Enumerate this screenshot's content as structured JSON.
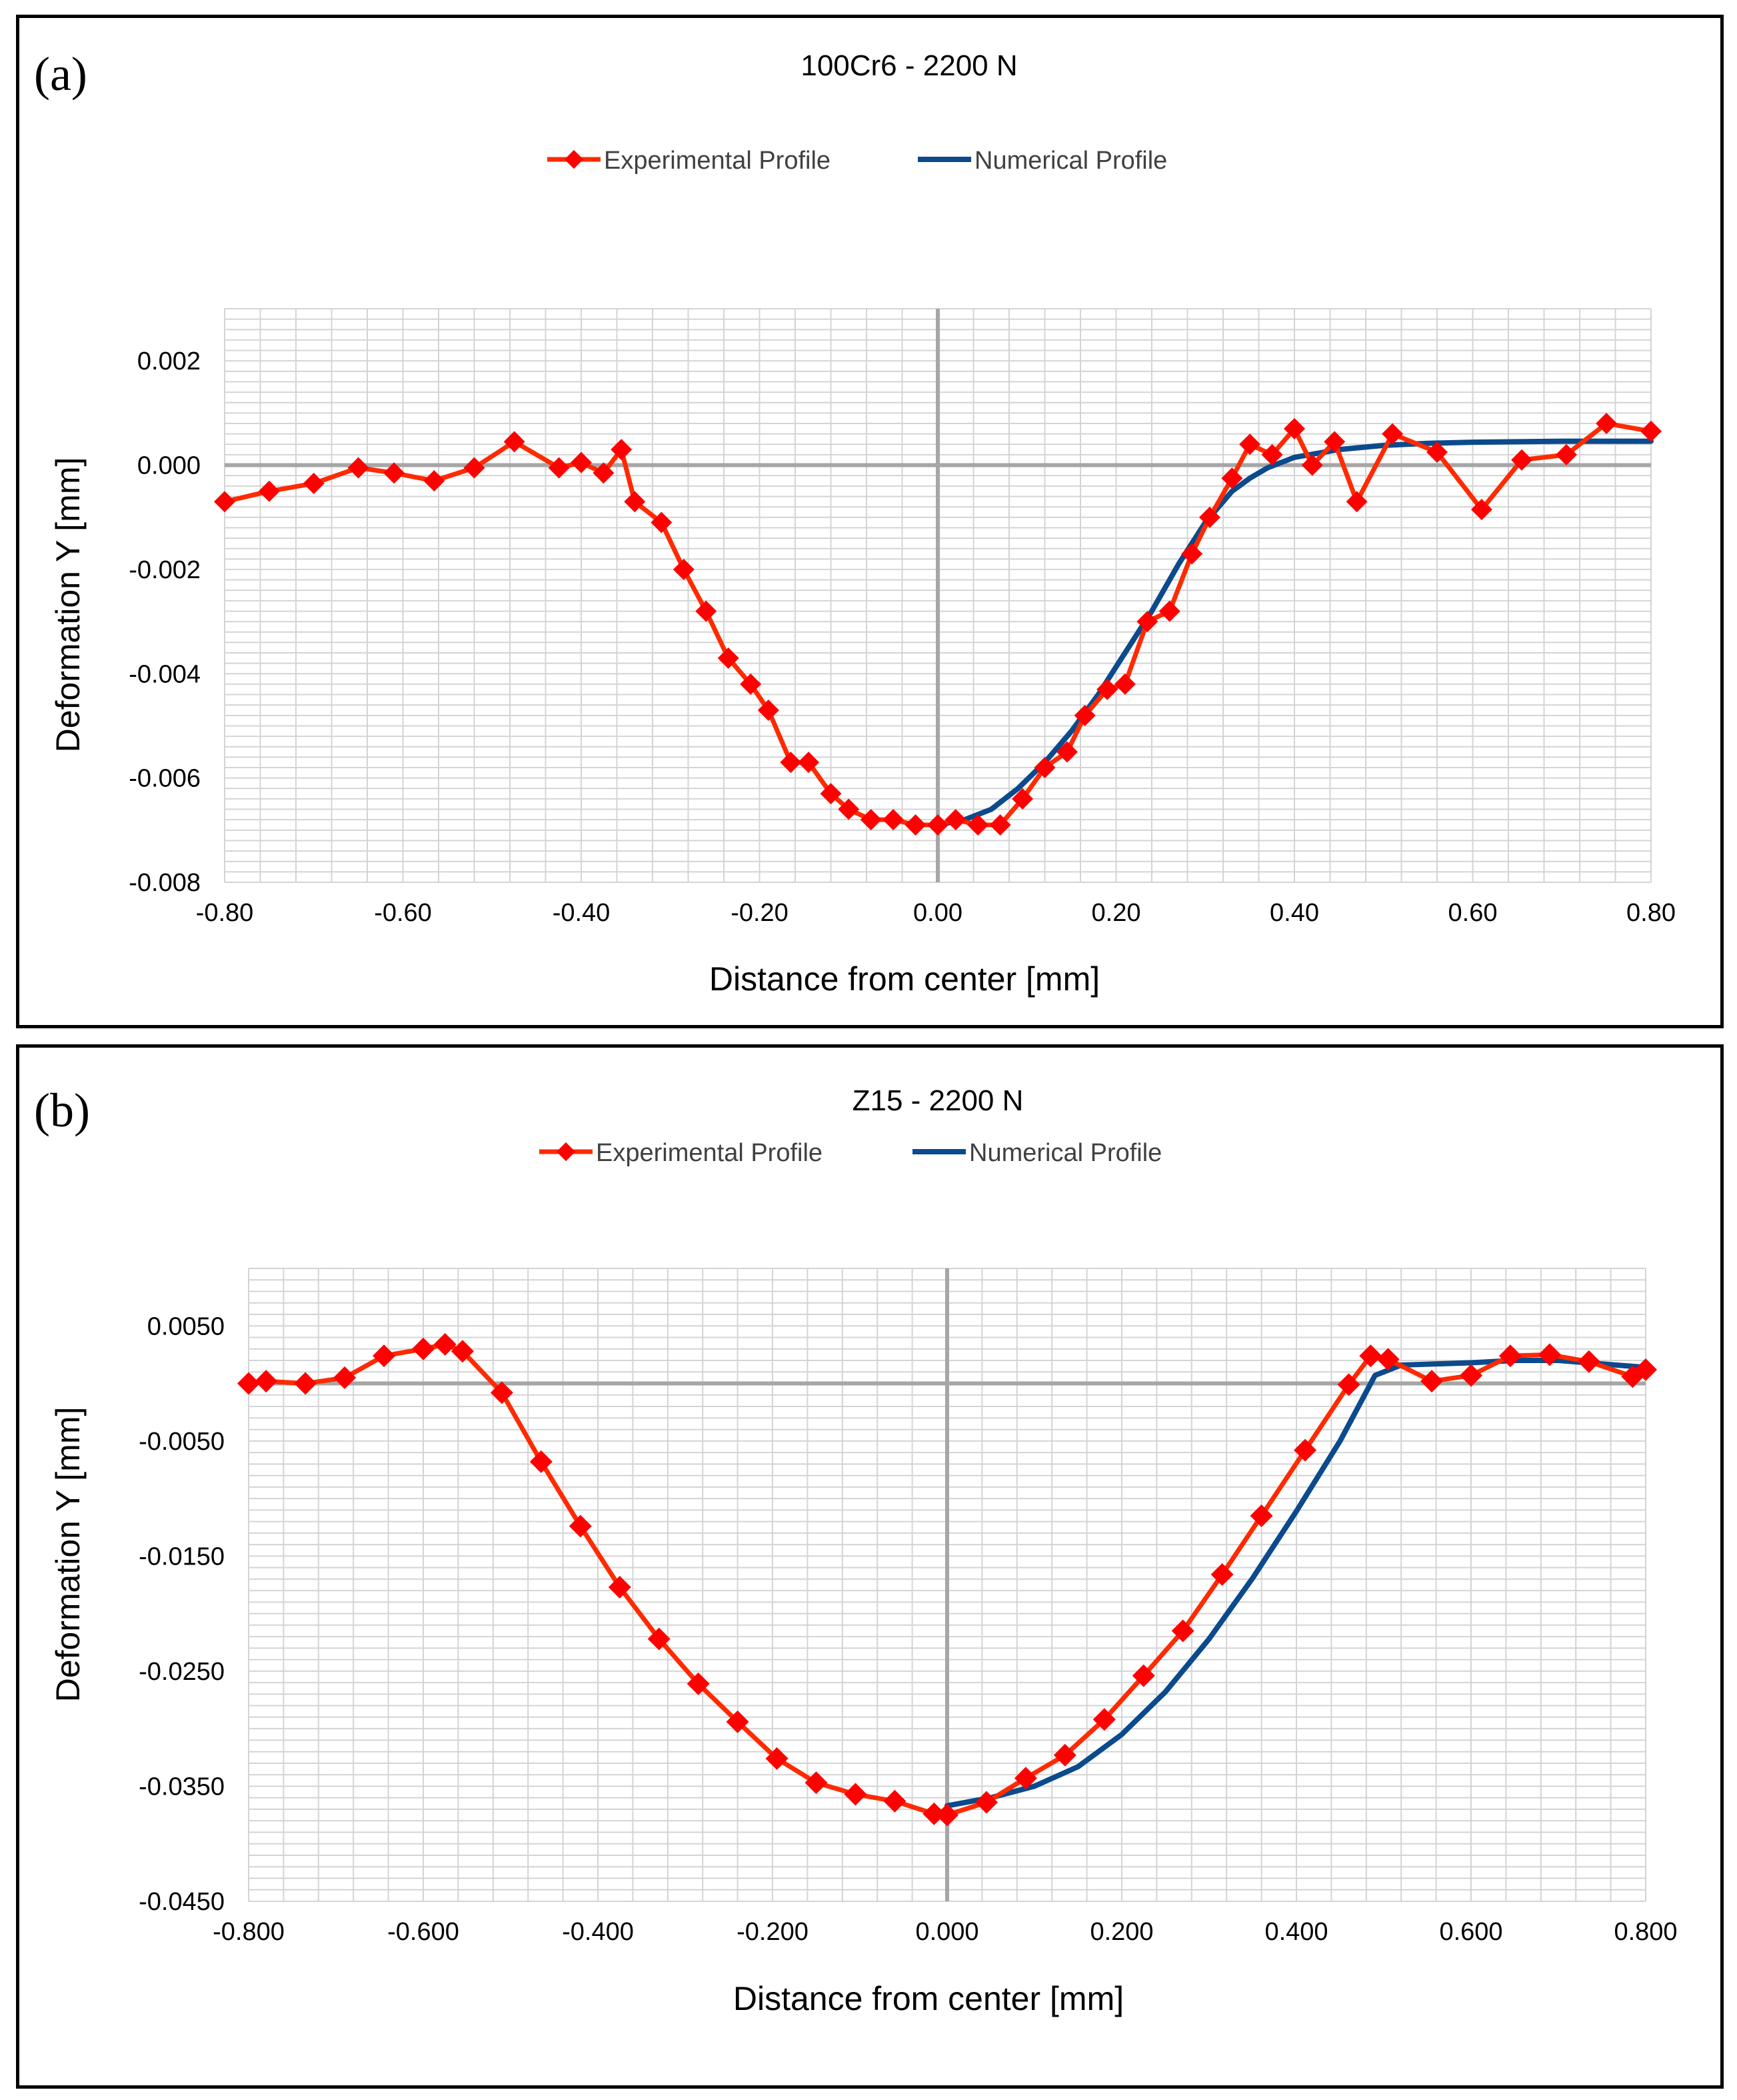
{
  "chart_data": [
    {
      "type": "line",
      "panel_label": "(a)",
      "title": "100Cr6 - 2200 N",
      "xlabel": "Distance from center [mm]",
      "ylabel": "Deformation Y [mm]",
      "xlim": [
        -0.8,
        0.8
      ],
      "ylim": [
        -0.008,
        0.003
      ],
      "x_ticks": [
        -0.8,
        -0.6,
        -0.4,
        -0.2,
        0.0,
        0.2,
        0.4,
        0.6,
        0.8
      ],
      "x_tick_labels": [
        "-0.80",
        "-0.60",
        "-0.40",
        "-0.20",
        "0.00",
        "0.20",
        "0.40",
        "0.60",
        "0.80"
      ],
      "y_ticks": [
        -0.008,
        -0.006,
        -0.004,
        -0.002,
        0.0,
        0.002
      ],
      "y_tick_labels": [
        "-0.008",
        "-0.006",
        "-0.004",
        "-0.002",
        "0.000",
        "0.002"
      ],
      "x_minor_step": 0.04,
      "y_minor_step": 0.0002,
      "grid": true,
      "legend_position": "top-center",
      "series": [
        {
          "name": "Experimental Profile",
          "color": "#ff2a00",
          "marker_color": "#ff0000",
          "marker": "diamond",
          "x": [
            -0.8,
            -0.75,
            -0.7,
            -0.65,
            -0.61,
            -0.565,
            -0.52,
            -0.475,
            -0.425,
            -0.4,
            -0.375,
            -0.355,
            -0.34,
            -0.31,
            -0.285,
            -0.26,
            -0.235,
            -0.21,
            -0.19,
            -0.165,
            -0.145,
            -0.12,
            -0.1,
            -0.075,
            -0.05,
            -0.025,
            0.0,
            0.02,
            0.045,
            0.07,
            0.095,
            0.12,
            0.145,
            0.165,
            0.19,
            0.21,
            0.235,
            0.26,
            0.285,
            0.305,
            0.33,
            0.35,
            0.375,
            0.4,
            0.42,
            0.445,
            0.47,
            0.51,
            0.56,
            0.61,
            0.655,
            0.705,
            0.75,
            0.8
          ],
          "y": [
            -0.0007,
            -0.0005,
            -0.00035,
            -5e-05,
            -0.00015,
            -0.0003,
            -5e-05,
            0.00045,
            -5e-05,
            5e-05,
            -0.00015,
            0.0003,
            -0.0007,
            -0.0011,
            -0.002,
            -0.0028,
            -0.0037,
            -0.0042,
            -0.0047,
            -0.0057,
            -0.0057,
            -0.0063,
            -0.0066,
            -0.0068,
            -0.0068,
            -0.0069,
            -0.0069,
            -0.0068,
            -0.0069,
            -0.0069,
            -0.0064,
            -0.0058,
            -0.0055,
            -0.0048,
            -0.0043,
            -0.0042,
            -0.003,
            -0.0028,
            -0.0017,
            -0.001,
            -0.00025,
            0.0004,
            0.0002,
            0.0007,
            0.0,
            0.00045,
            -0.0007,
            0.0006,
            0.00025,
            -0.00085,
            0.0001,
            0.0002,
            0.0008,
            0.00065
          ]
        },
        {
          "name": "Numerical Profile",
          "color": "#0b4a8c",
          "x": [
            0.0,
            0.03,
            0.06,
            0.09,
            0.12,
            0.15,
            0.18,
            0.21,
            0.24,
            0.27,
            0.3,
            0.33,
            0.35,
            0.37,
            0.4,
            0.45,
            0.5,
            0.55,
            0.6,
            0.65,
            0.7,
            0.75,
            0.8
          ],
          "y": [
            -0.0069,
            -0.0068,
            -0.0066,
            -0.0062,
            -0.0057,
            -0.0051,
            -0.0044,
            -0.0036,
            -0.0028,
            -0.0019,
            -0.0011,
            -0.0005,
            -0.00025,
            -5e-05,
            0.00015,
            0.0003,
            0.00038,
            0.00042,
            0.00044,
            0.00045,
            0.00046,
            0.00046,
            0.00046
          ]
        }
      ]
    },
    {
      "type": "line",
      "panel_label": "(b)",
      "title": "Z15 - 2200 N",
      "xlabel": "Distance from center [mm]",
      "ylabel": "Deformation Y [mm]",
      "xlim": [
        -0.8,
        0.8
      ],
      "ylim": [
        -0.045,
        0.01
      ],
      "x_ticks": [
        -0.8,
        -0.6,
        -0.4,
        -0.2,
        0.0,
        0.2,
        0.4,
        0.6,
        0.8
      ],
      "x_tick_labels": [
        "-0.800",
        "-0.600",
        "-0.400",
        "-0.200",
        "0.000",
        "0.200",
        "0.400",
        "0.600",
        "0.800"
      ],
      "y_ticks": [
        -0.045,
        -0.035,
        -0.025,
        -0.015,
        -0.005,
        0.005
      ],
      "y_tick_labels": [
        "-0.0450",
        "-0.0350",
        "-0.0250",
        "-0.0150",
        "-0.0050",
        "0.0050"
      ],
      "x_minor_step": 0.04,
      "y_minor_step": 0.001,
      "grid": true,
      "legend_position": "top-center",
      "series": [
        {
          "name": "Experimental Profile",
          "color": "#ff2a00",
          "marker_color": "#ff0000",
          "marker": "diamond",
          "x": [
            -0.8,
            -0.78,
            -0.735,
            -0.69,
            -0.645,
            -0.6,
            -0.575,
            -0.555,
            -0.51,
            -0.465,
            -0.42,
            -0.375,
            -0.33,
            -0.285,
            -0.24,
            -0.195,
            -0.15,
            -0.105,
            -0.06,
            -0.015,
            0.0,
            0.045,
            0.09,
            0.135,
            0.18,
            0.225,
            0.27,
            0.315,
            0.36,
            0.41,
            0.46,
            0.485,
            0.505,
            0.555,
            0.6,
            0.645,
            0.69,
            0.735,
            0.785,
            0.8
          ],
          "y": [
            0.0,
            0.0002,
            0.0,
            0.0005,
            0.0024,
            0.003,
            0.0034,
            0.0028,
            -0.0008,
            -0.0068,
            -0.0124,
            -0.0177,
            -0.0222,
            -0.0261,
            -0.0294,
            -0.0326,
            -0.0347,
            -0.0357,
            -0.0363,
            -0.0374,
            -0.0375,
            -0.0364,
            -0.0343,
            -0.0323,
            -0.0292,
            -0.0254,
            -0.0215,
            -0.0166,
            -0.0115,
            -0.0058,
            -0.0001,
            0.0024,
            0.0021,
            0.0002,
            0.0007,
            0.0024,
            0.0025,
            0.0019,
            0.0006,
            0.0012
          ]
        },
        {
          "name": "Numerical Profile",
          "color": "#0b4a8c",
          "x": [
            0.0,
            0.05,
            0.1,
            0.15,
            0.2,
            0.25,
            0.3,
            0.35,
            0.4,
            0.45,
            0.49,
            0.52,
            0.6,
            0.65,
            0.7,
            0.75,
            0.8
          ],
          "y": [
            -0.0367,
            -0.036,
            -0.035,
            -0.0333,
            -0.0305,
            -0.0268,
            -0.0222,
            -0.0169,
            -0.0111,
            -0.005,
            0.0007,
            0.0016,
            0.0018,
            0.002,
            0.002,
            0.0017,
            0.0014
          ]
        }
      ]
    }
  ]
}
